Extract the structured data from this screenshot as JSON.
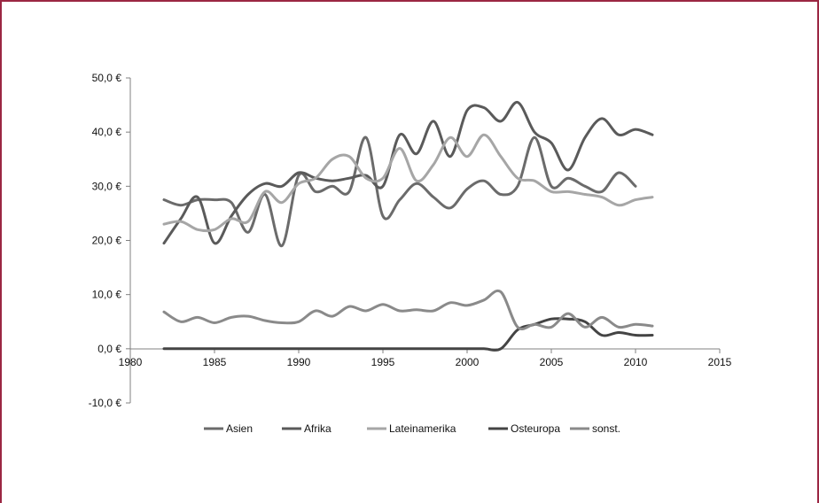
{
  "chart_data": {
    "type": "line",
    "title": "",
    "xlabel": "",
    "ylabel": "",
    "xlim": [
      1980,
      2015
    ],
    "ylim": [
      -10,
      50
    ],
    "xticks": [
      1980,
      1985,
      1990,
      1995,
      2000,
      2005,
      2010,
      2015
    ],
    "xtick_labels": [
      "1980",
      "1985",
      "1990",
      "1995",
      "2000",
      "2005",
      "2010",
      "2015"
    ],
    "yticks": [
      -10,
      0,
      10,
      20,
      30,
      40,
      50
    ],
    "ytick_labels": [
      "-10,0 €",
      "0,0 €",
      "10,0 €",
      "20,0 €",
      "30,0 €",
      "40,0 €",
      "50,0 €"
    ],
    "grid": false,
    "legend_position": "bottom",
    "x": [
      1982,
      1983,
      1984,
      1985,
      1986,
      1987,
      1988,
      1989,
      1990,
      1991,
      1992,
      1993,
      1994,
      1995,
      1996,
      1997,
      1998,
      1999,
      2000,
      2001,
      2002,
      2003,
      2004,
      2005,
      2006,
      2007,
      2008,
      2009,
      2010,
      2011
    ],
    "series": [
      {
        "name": "Asien",
        "color": "#6b6b6b",
        "values": [
          27.5,
          26.5,
          27.5,
          27.5,
          27.0,
          21.5,
          28.5,
          19.0,
          32.0,
          29.0,
          30.0,
          29.0,
          39.0,
          24.5,
          27.5,
          30.5,
          28.0,
          26.0,
          29.5,
          31.0,
          28.5,
          30.0,
          39.0,
          30.0,
          31.5,
          30.0,
          29.0,
          32.5,
          30.0,
          null
        ]
      },
      {
        "name": "Afrika",
        "color": "#5a5a5a",
        "values": [
          19.5,
          24.0,
          28.0,
          19.5,
          24.5,
          28.5,
          30.5,
          30.0,
          32.5,
          31.5,
          31.0,
          31.5,
          32.0,
          30.0,
          39.5,
          36.0,
          42.0,
          35.5,
          44.0,
          44.5,
          42.0,
          45.5,
          40.0,
          38.0,
          33.0,
          39.0,
          42.5,
          39.5,
          40.5,
          39.5
        ]
      },
      {
        "name": "Lateinamerika",
        "color": "#a6a6a6",
        "values": [
          23.0,
          23.5,
          22.0,
          22.0,
          24.0,
          23.5,
          29.0,
          27.0,
          30.5,
          31.5,
          35.0,
          35.5,
          31.5,
          31.5,
          37.0,
          31.0,
          34.0,
          39.0,
          35.5,
          39.5,
          35.5,
          31.5,
          31.0,
          29.0,
          29.0,
          28.5,
          28.0,
          26.5,
          27.5,
          28.0
        ]
      },
      {
        "name": "Osteuropa",
        "color": "#444444",
        "values": [
          0,
          0,
          0,
          0,
          0,
          0,
          0,
          0,
          0,
          0,
          0,
          0,
          0,
          0,
          0,
          0,
          0,
          0,
          0,
          0,
          0,
          3.5,
          4.5,
          5.5,
          5.5,
          5.0,
          2.5,
          3.0,
          2.5,
          2.5
        ]
      },
      {
        "name": "sonst.",
        "color": "#8a8a8a",
        "values": [
          6.8,
          5.0,
          5.8,
          4.8,
          5.8,
          6.0,
          5.2,
          4.8,
          5.0,
          7.0,
          6.0,
          7.8,
          7.0,
          8.2,
          7.0,
          7.2,
          7.0,
          8.5,
          8.0,
          9.0,
          10.5,
          4.0,
          4.5,
          4.0,
          6.5,
          4.0,
          5.8,
          4.0,
          4.5,
          4.2
        ]
      }
    ]
  }
}
